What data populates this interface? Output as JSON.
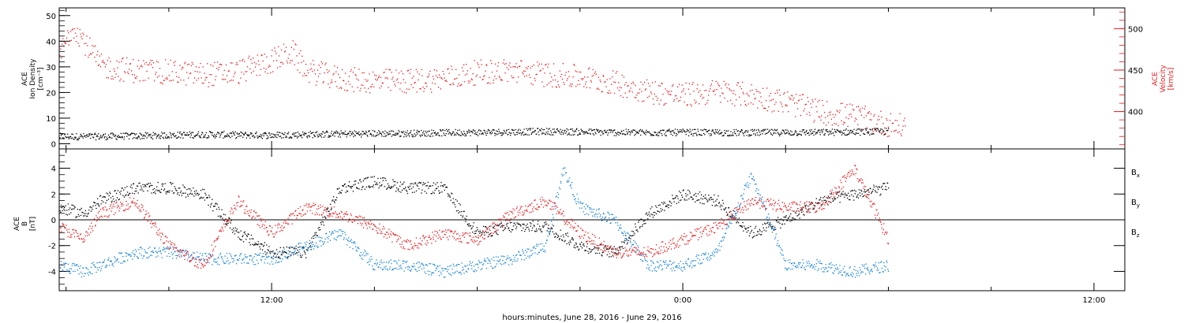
{
  "chart_data": [
    {
      "type": "scatter",
      "xlabel": "hours:minutes, June 28, 2016 - June 29, 2016",
      "x_ticks": [
        "12:00",
        "0:00",
        "12:00"
      ],
      "x_tick_hours": [
        12,
        24,
        36
      ],
      "x_range_hours": [
        5.8,
        36.9
      ],
      "ylabel_left": [
        "ACE",
        "Ion Density",
        "[cm⁻³]"
      ],
      "ylabel_right": [
        "ACE",
        "Velocity",
        "[km/s]"
      ],
      "ylim_left": [
        -2,
        53
      ],
      "ylim_right": [
        355,
        525
      ],
      "y_ticks_left": [
        0,
        10,
        20,
        30,
        40,
        50
      ],
      "y_ticks_right": [
        400,
        450,
        500
      ],
      "y_tick_labels_right": [
        "400",
        "450",
        "500"
      ],
      "series": [
        {
          "axis": "left",
          "color": "#000000",
          "points": [
            [
              5.8,
              3
            ],
            [
              7,
              3
            ],
            [
              8,
              3.2
            ],
            [
              9,
              3.5
            ],
            [
              10,
              3.8
            ],
            [
              11,
              3.6
            ],
            [
              12,
              3.5
            ],
            [
              13,
              3.8
            ],
            [
              14,
              4
            ],
            [
              15,
              4.2
            ],
            [
              16,
              4.2
            ],
            [
              17,
              4.5
            ],
            [
              18,
              4.6
            ],
            [
              19,
              4.8
            ],
            [
              20,
              5
            ],
            [
              21,
              4.8
            ],
            [
              22,
              4.6
            ],
            [
              23,
              4.5
            ],
            [
              24,
              4.6
            ],
            [
              25,
              4.5
            ],
            [
              26,
              4.5
            ],
            [
              27,
              4.6
            ],
            [
              28,
              4.6
            ],
            [
              29,
              4.8
            ],
            [
              30,
              5
            ]
          ]
        },
        {
          "axis": "right",
          "color": "#e8191b",
          "points": [
            [
              5.8,
              468
            ],
            [
              6.2,
              505
            ],
            [
              6.6,
              480
            ],
            [
              7,
              455
            ],
            [
              8,
              450
            ],
            [
              9,
              448
            ],
            [
              10,
              445
            ],
            [
              11,
              448
            ],
            [
              12,
              462
            ],
            [
              12.6,
              472
            ],
            [
              13,
              450
            ],
            [
              14,
              440
            ],
            [
              15,
              437
            ],
            [
              16,
              437
            ],
            [
              17,
              440
            ],
            [
              18,
              448
            ],
            [
              19,
              450
            ],
            [
              20,
              445
            ],
            [
              21,
              442
            ],
            [
              22,
              435
            ],
            [
              23,
              425
            ],
            [
              24,
              420
            ],
            [
              25,
              425
            ],
            [
              26,
              420
            ],
            [
              27,
              412
            ],
            [
              28,
              400
            ],
            [
              29,
              395
            ],
            [
              30,
              385
            ],
            [
              30.5,
              382
            ]
          ]
        }
      ]
    },
    {
      "type": "scatter",
      "xlabel": "hours:minutes, June 28, 2016 - June 29, 2016",
      "x_ticks": [
        "12:00",
        "0:00",
        "12:00"
      ],
      "x_tick_hours": [
        12,
        24,
        36
      ],
      "x_range_hours": [
        5.8,
        36.9
      ],
      "ylabel_left": [
        "ACE",
        "B",
        "[nT]"
      ],
      "ylim": [
        -5.5,
        5.5
      ],
      "y_ticks": [
        -4,
        -2,
        0,
        2,
        4
      ],
      "legend": [
        "Bx",
        "By",
        "Bz"
      ],
      "series": [
        {
          "name": "Bx",
          "color": "#000000",
          "points": [
            [
              5.8,
              1
            ],
            [
              6.5,
              0.5
            ],
            [
              7,
              1.5
            ],
            [
              8,
              2.5
            ],
            [
              9,
              2.5
            ],
            [
              10,
              2
            ],
            [
              11,
              -1
            ],
            [
              12,
              -2.5
            ],
            [
              13,
              -2.5
            ],
            [
              14,
              2.5
            ],
            [
              15,
              3
            ],
            [
              16,
              2.5
            ],
            [
              17,
              2.5
            ],
            [
              18,
              -1
            ],
            [
              19,
              -0.5
            ],
            [
              20,
              -0.5
            ],
            [
              21,
              -2
            ],
            [
              22,
              -2.5
            ],
            [
              23,
              0.5
            ],
            [
              24,
              2
            ],
            [
              25,
              1.5
            ],
            [
              26,
              -1
            ],
            [
              27,
              0
            ],
            [
              28,
              1.5
            ],
            [
              29,
              2
            ],
            [
              30,
              2.5
            ]
          ]
        },
        {
          "name": "By",
          "color": "#1280d8",
          "points": [
            [
              5.8,
              -3.5
            ],
            [
              6.5,
              -4
            ],
            [
              7,
              -3.5
            ],
            [
              8,
              -2.5
            ],
            [
              9,
              -2.5
            ],
            [
              10,
              -3
            ],
            [
              11,
              -3
            ],
            [
              12,
              -3
            ],
            [
              13,
              -2
            ],
            [
              14,
              -1
            ],
            [
              15,
              -3.5
            ],
            [
              16,
              -3.5
            ],
            [
              17,
              -4
            ],
            [
              18,
              -3.5
            ],
            [
              19,
              -3
            ],
            [
              20,
              -2
            ],
            [
              20.5,
              4
            ],
            [
              21,
              1
            ],
            [
              22,
              0
            ],
            [
              23,
              -3.5
            ],
            [
              24,
              -3.5
            ],
            [
              25,
              -2.5
            ],
            [
              26,
              3.5
            ],
            [
              27,
              -3.5
            ],
            [
              28,
              -3.5
            ],
            [
              29,
              -4
            ],
            [
              30,
              -3.5
            ]
          ]
        },
        {
          "name": "Bz",
          "color": "#e8191b",
          "points": [
            [
              5.8,
              -0.5
            ],
            [
              6.5,
              -1.5
            ],
            [
              7,
              0.5
            ],
            [
              8,
              1.5
            ],
            [
              9,
              -2
            ],
            [
              10,
              -3.5
            ],
            [
              11,
              1.5
            ],
            [
              12,
              -1
            ],
            [
              13,
              1
            ],
            [
              14,
              0.5
            ],
            [
              15,
              -0.5
            ],
            [
              16,
              -2
            ],
            [
              17,
              -1
            ],
            [
              18,
              -1.5
            ],
            [
              19,
              0.5
            ],
            [
              20,
              1.5
            ],
            [
              21,
              -1
            ],
            [
              22,
              -2.5
            ],
            [
              23,
              -2.5
            ],
            [
              24,
              -1.5
            ],
            [
              25,
              -0.5
            ],
            [
              26,
              1.5
            ],
            [
              27,
              1
            ],
            [
              28,
              1
            ],
            [
              29,
              4
            ],
            [
              30,
              -1.5
            ]
          ]
        }
      ]
    }
  ]
}
